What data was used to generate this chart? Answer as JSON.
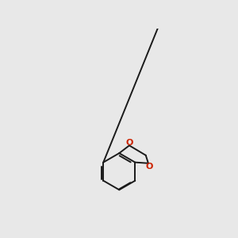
{
  "bg_color": "#e8e8e8",
  "bond_color": "#1a1a1a",
  "S_color": "#cccc00",
  "N_color": "#0000cc",
  "O_color": "#cc2200",
  "H_color": "#2e8b57",
  "wedge_color": "#0000cc",
  "figsize": [
    3.0,
    3.0
  ],
  "dpi": 100
}
